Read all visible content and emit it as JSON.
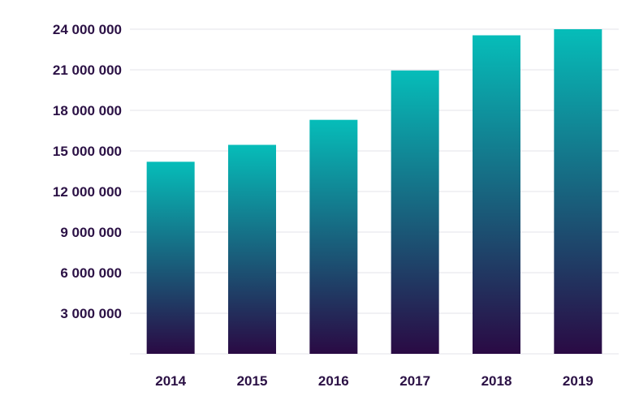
{
  "chart_data": {
    "type": "bar",
    "categories": [
      "2014",
      "2015",
      "2016",
      "2017",
      "2018",
      "2019"
    ],
    "values": [
      14200000,
      15450000,
      17300000,
      20950000,
      23550000,
      24050000
    ],
    "ylim": [
      0,
      24000000
    ],
    "yticks": [
      3000000,
      6000000,
      9000000,
      12000000,
      15000000,
      18000000,
      21000000,
      24000000
    ],
    "ytick_labels": [
      "3 000 000",
      "6 000 000",
      "9 000 000",
      "12 000 000",
      "15 000 000",
      "18 000 000",
      "21 000 000",
      "24 000 000"
    ],
    "grid": true,
    "colors": {
      "bar_top": "#06bdb9",
      "bar_bottom": "#2a0a44",
      "text": "#2b1145",
      "grid": "#e3e3ea"
    }
  }
}
